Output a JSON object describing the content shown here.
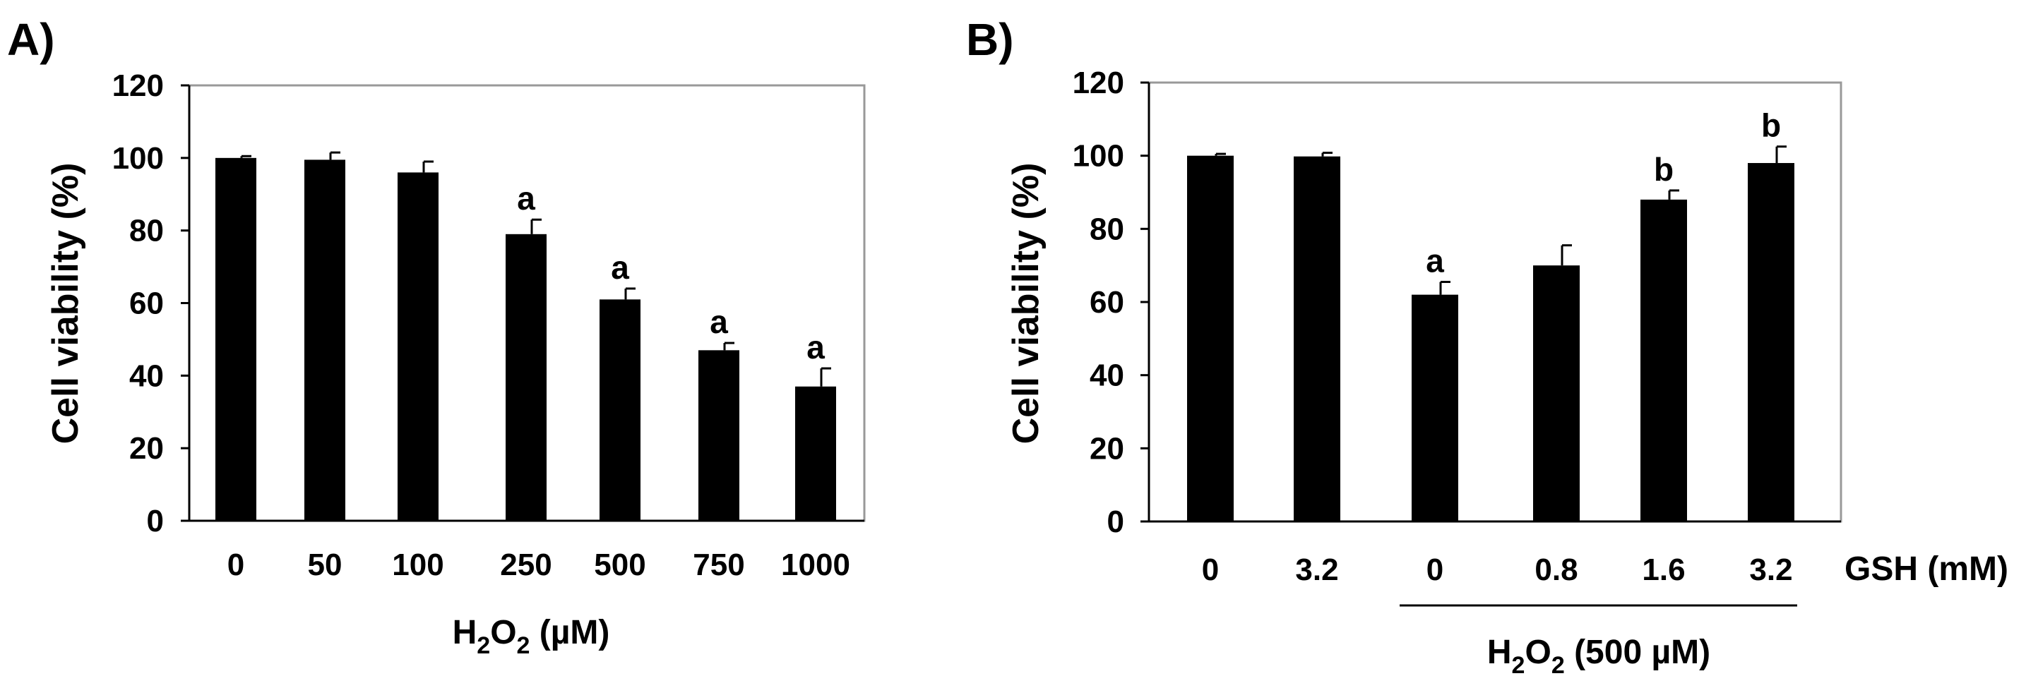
{
  "chart_data": [
    {
      "type": "bar",
      "panel_label": "A)",
      "categories": [
        "0",
        "50",
        "100",
        "250",
        "500",
        "750",
        "1000"
      ],
      "values": [
        100,
        99.5,
        96,
        79,
        61,
        47,
        37
      ],
      "errors": [
        0.5,
        2,
        3,
        4,
        3,
        2,
        5
      ],
      "significance": [
        "",
        "",
        "",
        "a",
        "a",
        "a",
        "a"
      ],
      "ylabel": "Cell viability (%)",
      "xlabel": {
        "pre": "H",
        "sub1": "2",
        "mid": "O",
        "sub2": "2",
        "post": " (µM)"
      },
      "ylim": [
        0,
        120
      ],
      "yticks": [
        0,
        20,
        40,
        60,
        80,
        100,
        120
      ],
      "bar_color": "#000000"
    },
    {
      "type": "bar",
      "panel_label": "B)",
      "categories": [
        "0",
        "3.2",
        "0",
        "0.8",
        "1.6",
        "3.2"
      ],
      "values": [
        100,
        99.8,
        62,
        70,
        88,
        98
      ],
      "errors": [
        0.5,
        1,
        3.5,
        5.5,
        2.5,
        4.5
      ],
      "significance": [
        "",
        "",
        "a",
        "",
        "b",
        "b"
      ],
      "ylabel": "Cell viability (%)",
      "x_row_label": "GSH (mM)",
      "group_label": {
        "pre": "H",
        "sub1": "2",
        "mid": "O",
        "sub2": "2",
        "post": " (500 µM)"
      },
      "ylim": [
        0,
        120
      ],
      "yticks": [
        0,
        20,
        40,
        60,
        80,
        100,
        120
      ],
      "bar_color": "#000000"
    }
  ]
}
